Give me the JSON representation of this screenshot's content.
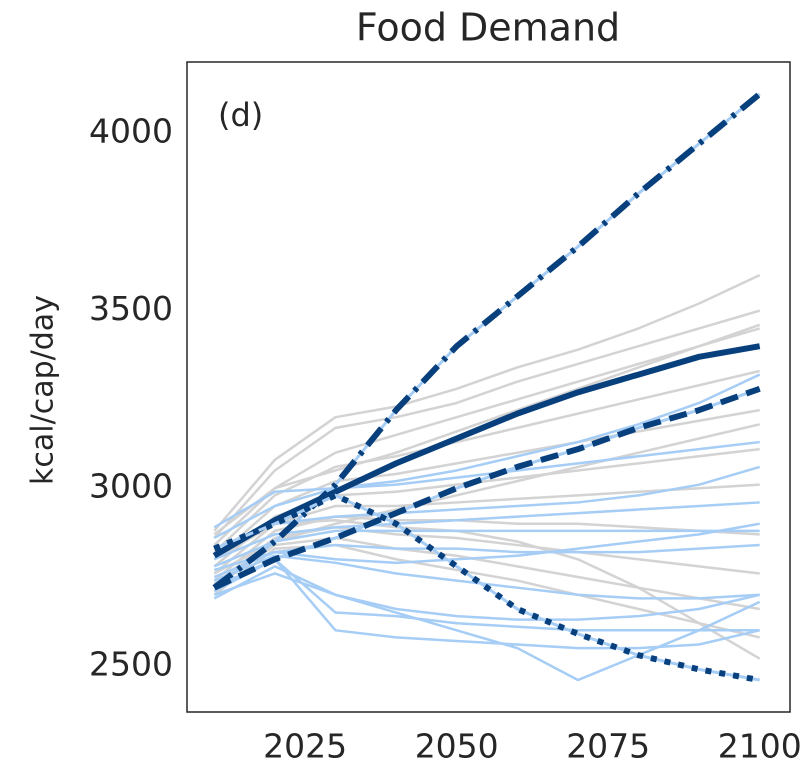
{
  "chart_data": {
    "type": "line",
    "title": "Food Demand",
    "ylabel": "kcal/cap/day",
    "annotation": "(d)",
    "x": [
      2010,
      2020,
      2030,
      2040,
      2050,
      2060,
      2070,
      2080,
      2090,
      2100
    ],
    "xlim": [
      2005.5,
      2105
    ],
    "ylim": [
      2370,
      4200
    ],
    "xticks": [
      2025,
      2050,
      2075,
      2100
    ],
    "yticks": [
      2500,
      3000,
      3500,
      4000
    ],
    "grid": false,
    "series": [
      {
        "color": "#d3d3d3",
        "values": [
          2880,
          3080,
          3200,
          3230,
          3280,
          3340,
          3390,
          3450,
          3520,
          3600
        ]
      },
      {
        "color": "#d3d3d3",
        "values": [
          2860,
          3050,
          3170,
          3200,
          3240,
          3300,
          3350,
          3400,
          3450,
          3500
        ]
      },
      {
        "color": "#d3d3d3",
        "values": [
          2840,
          3000,
          3100,
          3150,
          3200,
          3250,
          3300,
          3350,
          3400,
          3450
        ]
      },
      {
        "color": "#d3d3d3",
        "values": [
          2820,
          2980,
          3060,
          3090,
          3130,
          3170,
          3210,
          3250,
          3290,
          3330
        ]
      },
      {
        "color": "#d3d3d3",
        "values": [
          2800,
          2950,
          3020,
          3040,
          3070,
          3100,
          3130,
          3160,
          3190,
          3220
        ]
      },
      {
        "color": "#d3d3d3",
        "values": [
          2780,
          2920,
          2980,
          2990,
          3010,
          3030,
          3050,
          3070,
          3090,
          3110
        ]
      },
      {
        "color": "#d3d3d3",
        "values": [
          2760,
          2900,
          2950,
          2950,
          2960,
          2970,
          2980,
          2990,
          3000,
          3010
        ]
      },
      {
        "color": "#d3d3d3",
        "values": [
          2740,
          2880,
          2920,
          2910,
          2910,
          2900,
          2900,
          2890,
          2880,
          2870
        ]
      },
      {
        "color": "#d3d3d3",
        "values": [
          2730,
          2860,
          2890,
          2870,
          2860,
          2840,
          2820,
          2800,
          2780,
          2760
        ]
      },
      {
        "color": "#d3d3d3",
        "values": [
          2720,
          2840,
          2860,
          2830,
          2810,
          2780,
          2750,
          2720,
          2690,
          2660
        ]
      },
      {
        "color": "#d3d3d3",
        "values": [
          2700,
          2830,
          2840,
          2800,
          2770,
          2740,
          2700,
          2660,
          2620,
          2580
        ]
      },
      {
        "color": "#d3d3d3",
        "values": [
          2800,
          2900,
          2910,
          2890,
          2880,
          2850,
          2800,
          2720,
          2620,
          2520
        ]
      },
      {
        "color": "#d3d3d3",
        "values": [
          2870,
          3000,
          3050,
          3100,
          3160,
          3220,
          3280,
          3340,
          3400,
          3460
        ]
      },
      {
        "color": "#d3d3d3",
        "values": [
          2760,
          2850,
          2900,
          2940,
          2980,
          3020,
          3060,
          3100,
          3140,
          3180
        ]
      },
      {
        "color": "#a6cdf5",
        "values": [
          2890,
          2990,
          3000,
          3020,
          3050,
          3090,
          3130,
          3180,
          3240,
          3320
        ]
      },
      {
        "color": "#a6cdf5",
        "values": [
          2860,
          2950,
          3000,
          3010,
          3030,
          3050,
          3070,
          3090,
          3110,
          3130
        ]
      },
      {
        "color": "#a6cdf5",
        "values": [
          2830,
          2900,
          2920,
          2930,
          2940,
          2950,
          2960,
          2980,
          3010,
          3060
        ]
      },
      {
        "color": "#a6cdf5",
        "values": [
          2780,
          2850,
          2880,
          2880,
          2880,
          2880,
          2880,
          2880,
          2880,
          2880
        ]
      },
      {
        "color": "#a6cdf5",
        "values": [
          2750,
          2820,
          2840,
          2830,
          2830,
          2820,
          2820,
          2820,
          2830,
          2840
        ]
      },
      {
        "color": "#a6cdf5",
        "values": [
          2700,
          2760,
          2700,
          2660,
          2640,
          2630,
          2630,
          2640,
          2660,
          2700
        ]
      },
      {
        "color": "#a6cdf5",
        "values": [
          2710,
          2800,
          2600,
          2580,
          2570,
          2560,
          2550,
          2550,
          2560,
          2600
        ]
      },
      {
        "color": "#a6cdf5",
        "values": [
          2720,
          2800,
          2650,
          2640,
          2620,
          2610,
          2600,
          2600,
          2600,
          2600
        ]
      },
      {
        "color": "#a6cdf5",
        "values": [
          2690,
          2780,
          2700,
          2650,
          2600,
          2550,
          2460,
          2530,
          2600,
          2680
        ]
      },
      {
        "color": "#a6cdf5",
        "values": [
          2740,
          2810,
          2790,
          2760,
          2740,
          2720,
          2700,
          2690,
          2690,
          2700
        ]
      },
      {
        "color": "#a6cdf5",
        "values": [
          2800,
          2870,
          2890,
          2900,
          2910,
          2920,
          2930,
          2940,
          2950,
          2960
        ]
      },
      {
        "color": "#a6cdf5",
        "values": [
          2770,
          2820,
          2800,
          2790,
          2800,
          2810,
          2830,
          2850,
          2870,
          2900
        ]
      },
      {
        "color": "#08407e",
        "dash": "dashdot",
        "values": [
          2720,
          2850,
          3010,
          3220,
          3400,
          3540,
          3680,
          3830,
          3970,
          4110
        ]
      },
      {
        "color": "#08407e",
        "dash": "solid",
        "values": [
          2810,
          2910,
          2990,
          3070,
          3140,
          3210,
          3270,
          3320,
          3370,
          3400
        ]
      },
      {
        "color": "#08407e",
        "dash": "dashed",
        "values": [
          2720,
          2800,
          2860,
          2930,
          3000,
          3060,
          3110,
          3170,
          3220,
          3280
        ]
      },
      {
        "color": "#08407e",
        "dash": "dotted",
        "values": [
          2830,
          2900,
          2980,
          2900,
          2780,
          2660,
          2590,
          2530,
          2490,
          2460
        ]
      }
    ]
  }
}
